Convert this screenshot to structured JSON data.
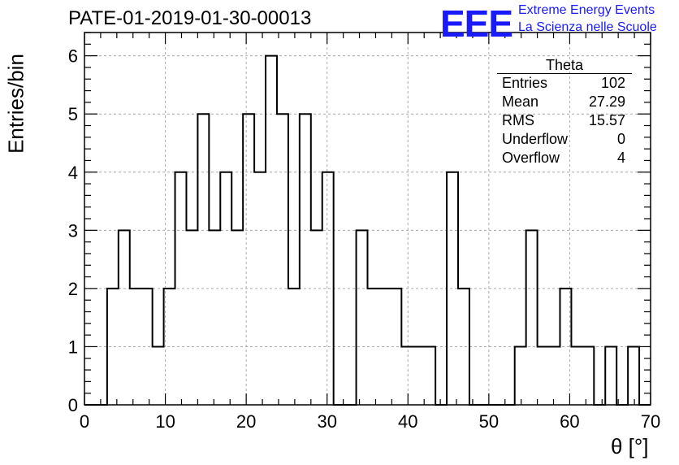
{
  "title": "PATE-01-2019-01-30-00013",
  "logo": {
    "mark": "EEE",
    "line1": "Extreme Energy Events",
    "line2": "La Scienza nelle Scuole",
    "color": "#1a1aff"
  },
  "stats": {
    "title": "Theta",
    "rows": [
      {
        "label": "Entries",
        "value": "102"
      },
      {
        "label": "Mean",
        "value": "27.29"
      },
      {
        "label": "RMS",
        "value": "15.57"
      },
      {
        "label": "Underflow",
        "value": "0"
      },
      {
        "label": "Overflow",
        "value": "4"
      }
    ]
  },
  "chart_data": {
    "type": "histogram",
    "xlabel": "θ [°]",
    "ylabel": "Entries/bin",
    "xlim": [
      0,
      70
    ],
    "ylim": [
      0,
      6.4
    ],
    "bin_width": 1.4,
    "bin_start": 0,
    "counts": [
      0,
      0,
      2,
      3,
      2,
      2,
      1,
      2,
      4,
      3,
      5,
      3,
      4,
      3,
      5,
      4,
      6,
      5,
      2,
      5,
      3,
      4,
      0,
      0,
      3,
      2,
      2,
      2,
      1,
      1,
      1,
      0,
      4,
      2,
      0,
      0,
      0,
      0,
      1,
      3,
      1,
      1,
      2,
      1,
      1,
      0,
      1,
      0,
      1,
      0
    ],
    "x_ticks": [
      0,
      10,
      20,
      30,
      40,
      50,
      60,
      70
    ],
    "y_ticks": [
      0,
      1,
      2,
      3,
      4,
      5,
      6
    ],
    "grid": true,
    "line_color": "#000000"
  }
}
